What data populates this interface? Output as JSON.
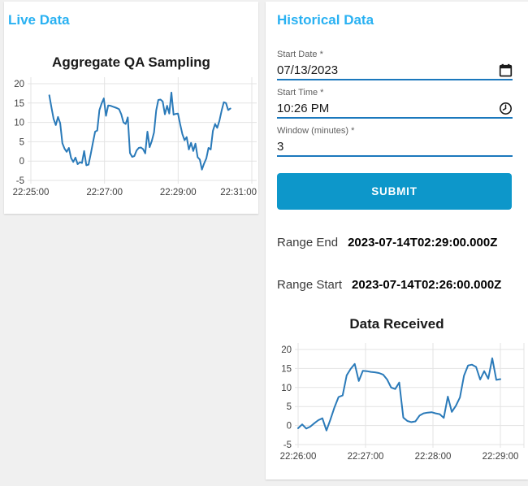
{
  "page": {
    "background": "#f0f0f0",
    "card_background": "#ffffff",
    "accent_blue": "#29b1f2",
    "submit_blue": "#0d97ca",
    "field_underline_blue": "#1b78bd"
  },
  "live_panel": {
    "title": "Live Data"
  },
  "historical_panel": {
    "title": "Historical Data",
    "form": {
      "start_date": {
        "label": "Start Date *",
        "value": "07/13/2023",
        "icon": "calendar-icon"
      },
      "start_time": {
        "label": "Start Time *",
        "value": "10:26 PM",
        "icon": "clock-icon"
      },
      "window": {
        "label": "Window (minutes) *",
        "value": "3"
      }
    },
    "submit": {
      "label": "SUBMIT"
    },
    "results": [
      {
        "label": "Range End",
        "value": "2023-07-14T02:29:00.000Z"
      },
      {
        "label": "Range Start",
        "value": "2023-07-14T02:26:00.000Z"
      }
    ]
  },
  "chart_data": [
    {
      "type": "line",
      "title": "Aggregate QA Sampling",
      "xlabel": "",
      "ylabel": "",
      "ylim": [
        -5,
        20
      ],
      "y_ticks": [
        -5,
        0,
        5,
        10,
        15,
        20
      ],
      "x_tick_labels": [
        "22:25:00",
        "22:27:00",
        "22:29:00",
        "22:31:00"
      ],
      "x_axis_start": "22:25:00",
      "x_axis_end": "22:31:00",
      "series_start": "22:25:30",
      "series_end": "22:30:25",
      "grid": true,
      "legend": "none",
      "line_color": "#2a7ab9",
      "grid_color": "#e3e3e3",
      "tick_color": "#3f3f3f",
      "values": [
        17,
        13.8,
        10.9,
        9.3,
        11.4,
        9.8,
        4.6,
        3.2,
        2.4,
        3.4,
        0.8,
        -0.2,
        0.9,
        -0.8,
        -0.3,
        -0.5,
        2.6,
        -1.1,
        -0.9,
        1.8,
        4.8,
        7.6,
        7.9,
        13.2,
        14.9,
        16.2,
        11.7,
        14.4,
        14.3,
        14.1,
        13.9,
        13.7,
        13.4,
        12.1,
        10,
        9.6,
        11.3,
        2.1,
        1.1,
        1.3,
        2.7,
        3.4,
        3.5,
        3.1,
        2,
        7.6,
        3.6,
        5.2,
        7.4,
        13.1,
        15.8,
        15.9,
        15.4,
        12.1,
        14.3,
        12.3,
        17.7,
        12,
        12.2,
        12.3,
        9.5,
        7,
        5.4,
        6.2,
        3,
        4.7,
        2.6,
        4.5,
        1,
        0.4,
        -2.2,
        -0.6,
        0.7,
        3.4,
        3,
        7.8,
        9.6,
        8.6,
        10.4,
        13,
        15.2,
        15,
        13.2,
        13.6
      ]
    },
    {
      "type": "line",
      "title": "Data Received",
      "xlabel": "",
      "ylabel": "",
      "ylim": [
        -5,
        20
      ],
      "y_ticks": [
        -5,
        0,
        5,
        10,
        15,
        20
      ],
      "x_tick_labels": [
        "22:26:00",
        "22:27:00",
        "22:28:00",
        "22:29:00"
      ],
      "x_axis_start": "22:26:00",
      "x_axis_end": "22:29:00",
      "series_start": "22:26:00",
      "series_end": "22:29:00",
      "grid": true,
      "legend": "none",
      "right_border": true,
      "line_color": "#2a7ab9",
      "grid_color": "#e3e3e3",
      "tick_color": "#3f3f3f",
      "values": [
        -0.7,
        0.3,
        -0.8,
        -0.3,
        0.6,
        1.4,
        1.9,
        -1.3,
        1.6,
        4.8,
        7.5,
        7.9,
        13.2,
        14.9,
        16.2,
        11.7,
        14.4,
        14.3,
        14.1,
        14,
        13.8,
        13.4,
        12.1,
        10,
        9.6,
        11.3,
        2.1,
        1.2,
        0.9,
        1.1,
        2.6,
        3.2,
        3.4,
        3.5,
        3.2,
        3,
        2,
        7.6,
        3.6,
        5.2,
        7.4,
        13.1,
        15.8,
        16,
        15.4,
        12.1,
        14.3,
        12.3,
        17.7,
        12,
        12.2
      ]
    }
  ]
}
